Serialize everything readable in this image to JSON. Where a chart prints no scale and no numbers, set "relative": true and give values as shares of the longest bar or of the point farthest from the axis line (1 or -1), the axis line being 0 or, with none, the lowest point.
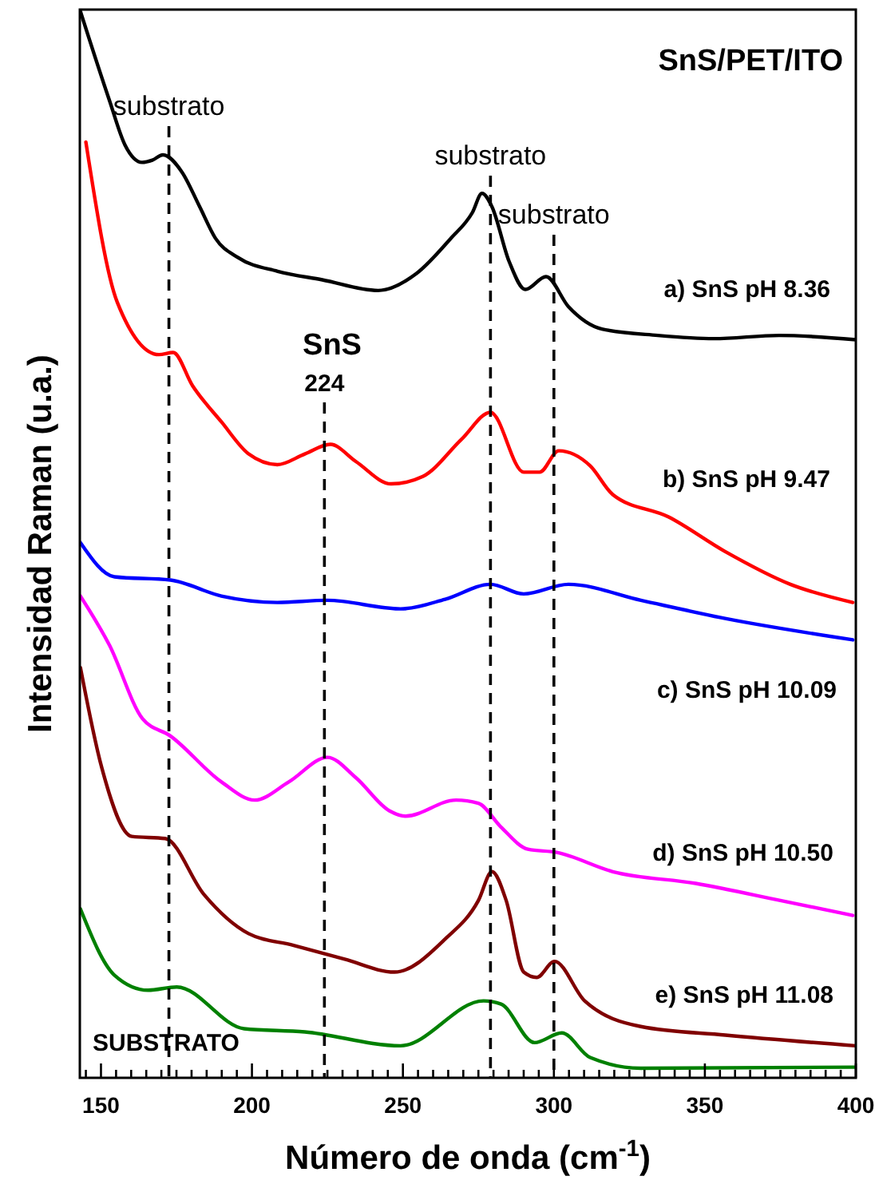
{
  "chart_data": {
    "type": "line",
    "relative": true,
    "title": "SnS/PET/ITO",
    "xlabel": "Número de onda (cm$^{-1}$)",
    "ylabel": "Intensidad Raman (u.a.)",
    "xlim": [
      143,
      400
    ],
    "xticks": [
      {
        "value": 145,
        "label": null
      },
      150,
      {
        "value": 155,
        "label": null
      },
      {
        "value": 160,
        "label": null
      },
      {
        "value": 165,
        "label": null
      },
      {
        "value": 170,
        "label": null
      },
      {
        "value": 175,
        "label": null
      },
      {
        "value": 180,
        "label": null
      },
      {
        "value": 185,
        "label": null
      },
      {
        "value": 190,
        "label": null
      },
      {
        "value": 195,
        "label": null
      },
      200,
      {
        "value": 205,
        "label": null
      },
      {
        "value": 210,
        "label": null
      },
      {
        "value": 215,
        "label": null
      },
      {
        "value": 220,
        "label": null
      },
      {
        "value": 225,
        "label": null
      },
      {
        "value": 230,
        "label": null
      },
      {
        "value": 235,
        "label": null
      },
      {
        "value": 240,
        "label": null
      },
      {
        "value": 245,
        "label": null
      },
      250,
      {
        "value": 255,
        "label": null
      },
      {
        "value": 260,
        "label": null
      },
      {
        "value": 265,
        "label": null
      },
      {
        "value": 270,
        "label": null
      },
      {
        "value": 275,
        "label": null
      },
      {
        "value": 280,
        "label": null
      },
      {
        "value": 285,
        "label": null
      },
      {
        "value": 290,
        "label": null
      },
      {
        "value": 295,
        "label": null
      },
      300,
      {
        "value": 305,
        "label": null
      },
      {
        "value": 310,
        "label": null
      },
      {
        "value": 315,
        "label": null
      },
      {
        "value": 320,
        "label": null
      },
      {
        "value": 325,
        "label": null
      },
      {
        "value": 330,
        "label": null
      },
      {
        "value": 335,
        "label": null
      },
      {
        "value": 340,
        "label": null
      },
      {
        "value": 345,
        "label": null
      },
      350,
      {
        "value": 355,
        "label": null
      },
      {
        "value": 360,
        "label": null
      },
      {
        "value": 365,
        "label": null
      },
      {
        "value": 370,
        "label": null
      },
      {
        "value": 375,
        "label": null
      },
      {
        "value": 380,
        "label": null
      },
      {
        "value": 385,
        "label": null
      },
      {
        "value": 390,
        "label": null
      },
      {
        "value": 395,
        "label": null
      },
      400
    ],
    "grid": false,
    "marker": "none",
    "line_style": "solid",
    "series": [
      {
        "name": "a) SnS pH 8.36",
        "color": "#000000",
        "x": [
          143,
          152.8,
          158,
          163.6,
          167,
          170.5,
          176.8,
          182.6,
          187.9,
          195.3,
          208.5,
          223.3,
          241.8,
          254.5,
          265.6,
          273,
          276.2,
          279.4,
          285.2,
          290.5,
          297.4,
          304.8,
          315.9,
          334.4,
          353,
          374.6,
          400
        ],
        "values": [
          1.0,
          0.915,
          0.873,
          0.857,
          0.859,
          0.864,
          0.848,
          0.816,
          0.786,
          0.768,
          0.755,
          0.747,
          0.737,
          0.753,
          0.785,
          0.81,
          0.828,
          0.816,
          0.764,
          0.738,
          0.75,
          0.722,
          0.701,
          0.695,
          0.692,
          0.695,
          0.691
        ]
      },
      {
        "name": "b) SnS pH 9.47",
        "color": "#ff0000",
        "x": [
          145,
          155.4,
          169.2,
          173.9,
          180.3,
          189.9,
          198.9,
          208.4,
          217.5,
          226,
          234.4,
          246.1,
          256.6,
          269.5,
          279,
          290,
          295.3,
          301.6,
          312,
          319.5,
          338,
          356.5,
          378.3,
          399
        ],
        "values": [
          0.876,
          0.726,
          0.677,
          0.679,
          0.648,
          0.614,
          0.584,
          0.574,
          0.584,
          0.593,
          0.577,
          0.556,
          0.563,
          0.598,
          0.623,
          0.567,
          0.567,
          0.587,
          0.573,
          0.546,
          0.525,
          0.493,
          0.462,
          0.445
        ]
      },
      {
        "name": "c) SnS pH 10.09",
        "color": "#0000ff",
        "x": [
          143.2,
          154.5,
          173,
          189.9,
          208.4,
          224.9,
          249.2,
          264,
          279,
          290,
          304.8,
          328.8,
          356.7,
          399
        ],
        "values": [
          0.501,
          0.469,
          0.466,
          0.451,
          0.445,
          0.447,
          0.439,
          0.448,
          0.462,
          0.453,
          0.462,
          0.447,
          0.43,
          0.41
        ]
      },
      {
        "name": "d) SnS pH 10.50",
        "color": "#ff00ff",
        "x": [
          143.2,
          152.8,
          163.8,
          173,
          189.9,
          200.9,
          212.2,
          225,
          234.4,
          245.5,
          250.8,
          267.6,
          275,
          282.4,
          291.4,
          300.9,
          319.5,
          347,
          375,
          399
        ],
        "values": [
          0.451,
          0.405,
          0.336,
          0.32,
          0.277,
          0.26,
          0.277,
          0.3,
          0.281,
          0.25,
          0.245,
          0.26,
          0.257,
          0.235,
          0.214,
          0.211,
          0.193,
          0.182,
          0.166,
          0.152
        ]
      },
      {
        "name": "e) SnS pH 11.08",
        "color": "#800000",
        "x": [
          143.2,
          150.2,
          160.2,
          171.3,
          184,
          198.9,
          213.8,
          230.7,
          247.2,
          264,
          275,
          279.5,
          284.2,
          290,
          294.3,
          300.2,
          310.2,
          328.8,
          356.8,
          400
        ],
        "values": [
          0.384,
          0.291,
          0.226,
          0.224,
          0.172,
          0.135,
          0.124,
          0.111,
          0.099,
          0.13,
          0.166,
          0.193,
          0.166,
          0.099,
          0.094,
          0.109,
          0.072,
          0.048,
          0.04,
          0.03
        ]
      },
      {
        "name": "SUBSTRATO",
        "color": "#008000",
        "x": [
          143.2,
          154.5,
          165.6,
          175.1,
          197.4,
          217.5,
          249.2,
          276.7,
          282.5,
          293.6,
          302.6,
          312,
          328.8,
          400
        ],
        "values": [
          0.158,
          0.096,
          0.082,
          0.085,
          0.046,
          0.043,
          0.03,
          0.072,
          0.069,
          0.033,
          0.042,
          0.019,
          0.009,
          0.01
        ]
      }
    ],
    "ref_lines": [
      {
        "axis": "x",
        "value": 172.5,
        "label": "substrato",
        "line_style": "dashed",
        "color": "#000000"
      },
      {
        "axis": "x",
        "value": 224,
        "label": "224",
        "line_style": "dashed",
        "color": "#000000"
      },
      {
        "axis": "x",
        "value": 279,
        "label": "substrato",
        "line_style": "dashed",
        "color": "#000000"
      },
      {
        "axis": "x",
        "value": 300,
        "label": "substrato",
        "line_style": "dashed",
        "color": "#000000"
      }
    ],
    "annotations": [
      "SnS"
    ]
  }
}
